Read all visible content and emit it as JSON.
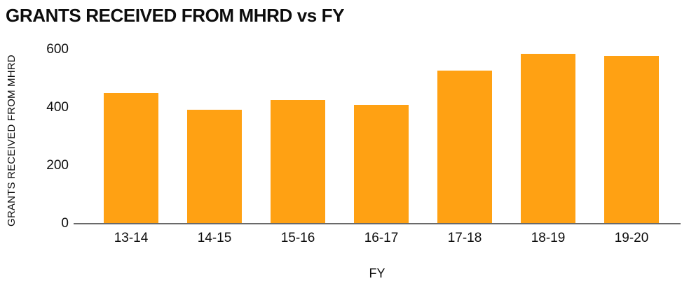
{
  "chart_data": {
    "type": "bar",
    "title": "GRANTS RECEIVED FROM MHRD vs FY",
    "xlabel": "FY",
    "ylabel": "GRANTS RECEIVED FROM MHRD",
    "categories": [
      "13-14",
      "14-15",
      "15-16",
      "16-17",
      "17-18",
      "18-19",
      "19-20"
    ],
    "values": [
      450,
      393,
      427,
      410,
      528,
      585,
      579
    ],
    "ylim": [
      0,
      600
    ],
    "yticks": [
      0,
      200,
      400,
      600
    ],
    "grid": false,
    "legend": false,
    "colors": {
      "bar_fill": "#FFA113",
      "axis_line": "#6A6A6A",
      "text": "#0D0D0D",
      "background": "#FFFFFF"
    }
  }
}
